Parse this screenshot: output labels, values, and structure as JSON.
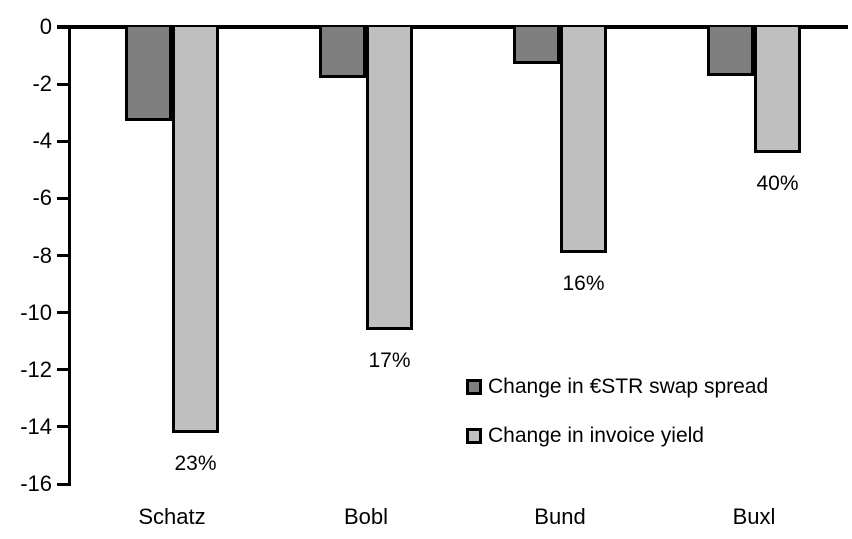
{
  "chart_data": {
    "type": "bar",
    "title": "",
    "xlabel": "",
    "ylabel": "",
    "categories": [
      "Schatz",
      "Bobl",
      "Bund",
      "Buxl"
    ],
    "series": [
      {
        "name": "Change in €STR swap spread",
        "color": "#7F7F7F",
        "values": [
          -3.3,
          -1.8,
          -1.3,
          -1.7
        ]
      },
      {
        "name": "Change in invoice yield",
        "color": "#BFBFBF",
        "values": [
          -14.2,
          -10.6,
          -7.9,
          -4.4
        ],
        "data_labels": [
          "23%",
          "17%",
          "16%",
          "40%"
        ]
      }
    ],
    "yticks": [
      0,
      -2,
      -4,
      -6,
      -8,
      -10,
      -12,
      -14,
      -16
    ],
    "ylim": [
      -16,
      0
    ],
    "grid": false,
    "bar_border_color": "#000000",
    "legend_position": "inside-right",
    "axis_color": "#000000",
    "background_color": "#FFFFFF"
  }
}
